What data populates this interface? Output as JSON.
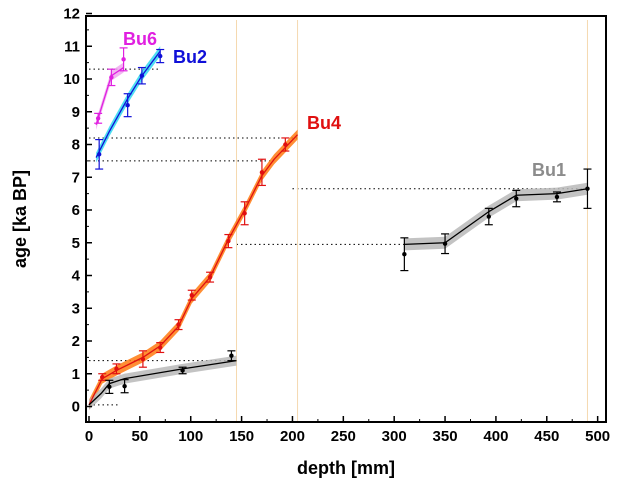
{
  "chart_data": {
    "type": "scatter",
    "xlabel": "depth [mm]",
    "ylabel": "age [ka BP]",
    "xlim": [
      0,
      520
    ],
    "ylim": [
      -0.2,
      12
    ],
    "xticks": [
      0,
      50,
      100,
      150,
      200,
      250,
      300,
      350,
      400,
      450,
      500
    ],
    "yticks": [
      0,
      1,
      2,
      3,
      4,
      5,
      6,
      7,
      8,
      9,
      10,
      11,
      12
    ],
    "grid": false,
    "series": [
      {
        "name": "Bu6",
        "color": "#e020e0",
        "band_color": "#f0a8f0",
        "points": [
          {
            "x": 9,
            "y": 8.8,
            "err": 0.15
          },
          {
            "x": 22,
            "y": 10.05,
            "err": 0.25
          },
          {
            "x": 34,
            "y": 10.6,
            "err": 0.35
          }
        ],
        "model": [
          [
            7,
            8.6
          ],
          [
            22,
            10.1
          ],
          [
            34,
            10.35
          ]
        ]
      },
      {
        "name": "Bu2",
        "color": "#1010d8",
        "band_color": "#30d8f0",
        "points": [
          {
            "x": 10,
            "y": 7.7,
            "err": 0.45
          },
          {
            "x": 38,
            "y": 9.2,
            "err": 0.35
          },
          {
            "x": 52,
            "y": 10.1,
            "err": 0.25
          },
          {
            "x": 70,
            "y": 10.7,
            "err": 0.2
          }
        ],
        "model": [
          [
            7,
            7.6
          ],
          [
            20,
            8.4
          ],
          [
            38,
            9.4
          ],
          [
            52,
            10.1
          ],
          [
            70,
            10.85
          ]
        ]
      },
      {
        "name": "Bu4",
        "color": "#e01010",
        "band_color": "#ff7a10",
        "points": [
          {
            "x": 13,
            "y": 0.9,
            "err": 0.1
          },
          {
            "x": 27,
            "y": 1.15,
            "err": 0.15
          },
          {
            "x": 53,
            "y": 1.45,
            "err": 0.25
          },
          {
            "x": 70,
            "y": 1.8,
            "err": 0.15
          },
          {
            "x": 88,
            "y": 2.5,
            "err": 0.15
          },
          {
            "x": 101,
            "y": 3.4,
            "err": 0.15
          },
          {
            "x": 119,
            "y": 3.95,
            "err": 0.15
          },
          {
            "x": 137,
            "y": 5.05,
            "err": 0.2
          },
          {
            "x": 153,
            "y": 5.9,
            "err": 0.35
          },
          {
            "x": 170,
            "y": 7.15,
            "err": 0.4
          },
          {
            "x": 193,
            "y": 8.0,
            "err": 0.2
          }
        ],
        "model": [
          [
            0,
            0.05
          ],
          [
            13,
            0.85
          ],
          [
            27,
            1.1
          ],
          [
            53,
            1.5
          ],
          [
            70,
            1.85
          ],
          [
            88,
            2.45
          ],
          [
            101,
            3.3
          ],
          [
            119,
            3.95
          ],
          [
            137,
            5.1
          ],
          [
            153,
            6.0
          ],
          [
            170,
            7.05
          ],
          [
            182,
            7.55
          ],
          [
            205,
            8.3
          ]
        ]
      },
      {
        "name": "Bu1",
        "color": "#000000",
        "band_color": "#b8b8b8",
        "label_color": "#8c8c8c",
        "points": [
          {
            "x": 20,
            "y": 0.6,
            "err": 0.2
          },
          {
            "x": 35,
            "y": 0.62,
            "err": 0.2
          },
          {
            "x": 92,
            "y": 1.1,
            "err": 0.1
          },
          {
            "x": 140,
            "y": 1.55,
            "err": 0.15
          },
          {
            "x": 310,
            "y": 4.65,
            "err": 0.5
          },
          {
            "x": 350,
            "y": 4.97,
            "err": 0.3
          },
          {
            "x": 393,
            "y": 5.8,
            "err": 0.25
          },
          {
            "x": 420,
            "y": 6.35,
            "err": 0.25
          },
          {
            "x": 460,
            "y": 6.4,
            "err": 0.15
          },
          {
            "x": 490,
            "y": 6.65,
            "err": 0.6
          }
        ],
        "model": [
          [
            0,
            0.05
          ],
          [
            12,
            0.4
          ],
          [
            20,
            0.7
          ],
          [
            35,
            0.85
          ],
          [
            92,
            1.15
          ],
          [
            145,
            1.4
          ]
        ],
        "model2": [
          [
            310,
            4.95
          ],
          [
            350,
            5.0
          ],
          [
            393,
            5.95
          ],
          [
            420,
            6.45
          ],
          [
            460,
            6.5
          ],
          [
            490,
            6.65
          ]
        ]
      }
    ],
    "reference_lines": [
      {
        "y": 10.3,
        "x0": 0,
        "x1": 70
      },
      {
        "y": 8.2,
        "x0": 0,
        "x1": 205
      },
      {
        "y": 7.5,
        "x0": 0,
        "x1": 182
      },
      {
        "y": 6.65,
        "x0": 200,
        "x1": 490
      },
      {
        "y": 4.95,
        "x0": 145,
        "x1": 310
      },
      {
        "y": 1.4,
        "x0": 0,
        "x1": 145
      },
      {
        "y": 0.05,
        "x0": 0,
        "x1": 30
      }
    ],
    "vertical_refs": [
      145,
      205,
      490
    ]
  }
}
